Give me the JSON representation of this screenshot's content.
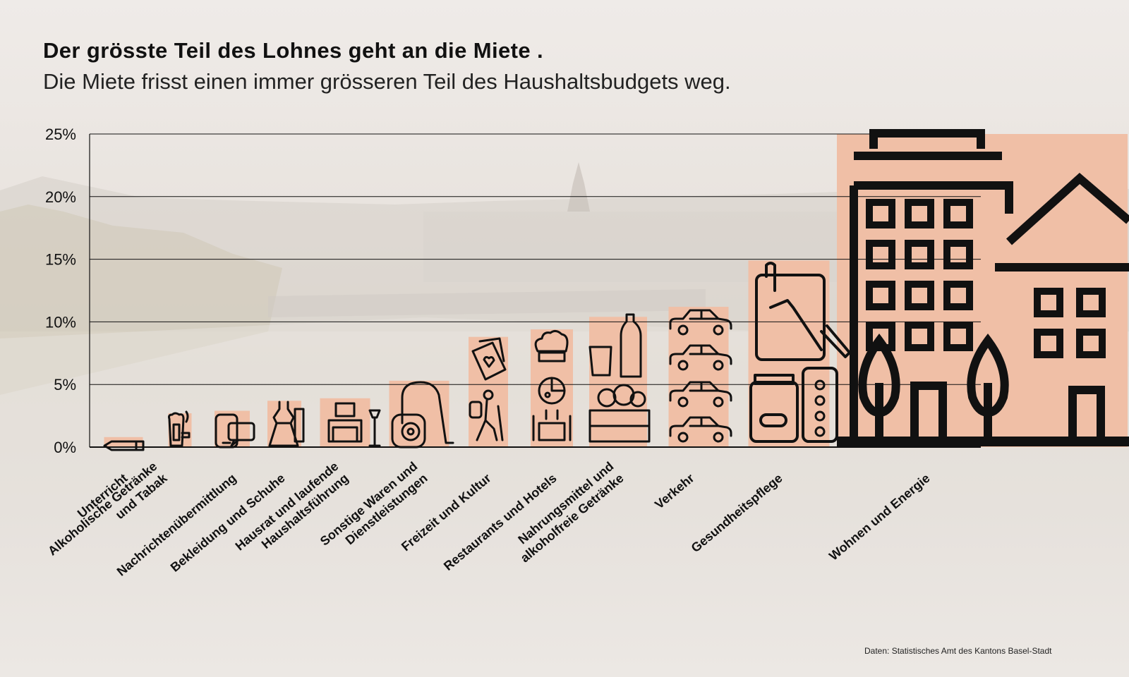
{
  "header": {
    "title": "Der grösste Teil des Lohnes geht an die Miete .",
    "subtitle": "Die Miete frisst einen immer grösseren Teil des Haushaltsbudgets weg."
  },
  "footer": {
    "source": "Daten: Statistisches Amt des Kantons Basel-Stadt"
  },
  "colors": {
    "bar": "#f0bfa6",
    "icon": "#111111",
    "grid": "#111111"
  },
  "chart_data": {
    "type": "bar",
    "title": "Der grösste Teil des Lohnes geht an die Miete .",
    "subtitle": "Die Miete frisst einen immer grösseren Teil des Haushaltsbudgets weg.",
    "xlabel": "",
    "ylabel": "",
    "ylim": [
      0,
      25
    ],
    "yticks": [
      "0%",
      "5%",
      "10%",
      "15%",
      "20%",
      "25%"
    ],
    "grid": true,
    "categories": [
      [
        "Unterricht"
      ],
      [
        "Alkoholische Getränke",
        "und Tabak"
      ],
      [
        "Nachrichtenübermittlung"
      ],
      [
        "Bekleidung und Schuhe"
      ],
      [
        "Hausrat und laufende",
        "Haushaltsführung"
      ],
      [
        "Sonstige Waren und",
        "Dienstleistungen"
      ],
      [
        "Freizeit und Kultur"
      ],
      [
        "Restaurants und Hotels"
      ],
      [
        "Nahrungsmittel und",
        "alkoholfreie Getränke"
      ],
      [
        "Verkehr"
      ],
      [
        "Gesundheitspflege"
      ],
      [
        "Wohnen und Energie"
      ]
    ],
    "values": [
      0.8,
      2.7,
      2.9,
      3.7,
      3.9,
      5.3,
      8.8,
      9.4,
      10.4,
      11.2,
      14.9,
      25.0
    ],
    "icons": [
      "pencil-icon",
      "beer-cigarette-icon",
      "phone-chat-icon",
      "dress-icon",
      "furniture-icon",
      "vacuum-icon",
      "hiker-cards-icon",
      "chef-pizza-icon",
      "groceries-icon",
      "car-icon",
      "pills-tablet-icon",
      "building-icon"
    ]
  }
}
